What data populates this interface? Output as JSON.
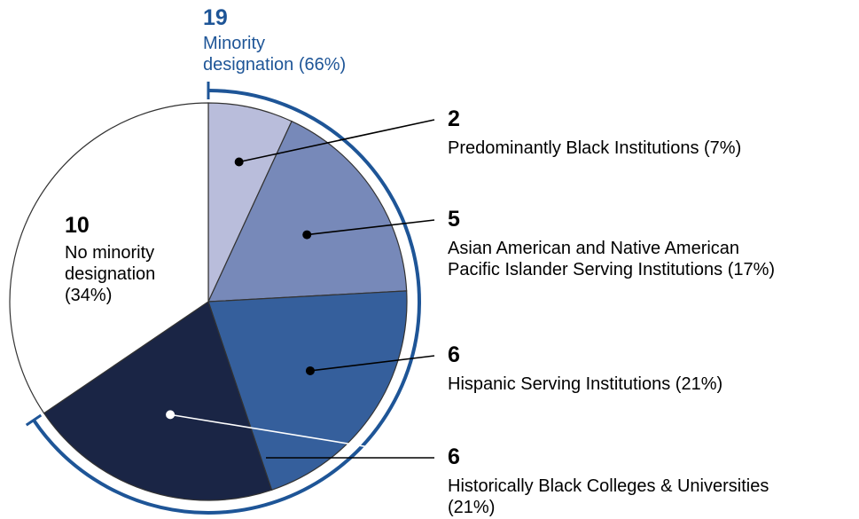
{
  "chart_data": {
    "type": "pie",
    "title": "",
    "slices": [
      {
        "label": "Predominantly Black Institutions (7%)",
        "count": "2",
        "value": 2,
        "percent": 7,
        "color": "#b9bddb"
      },
      {
        "label": "Asian American and Native American Pacific Islander Serving Institutions (17%)",
        "label_lines": [
          "Asian American and Native American",
          "Pacific Islander Serving Institutions (17%)"
        ],
        "count": "5",
        "value": 5,
        "percent": 17,
        "color": "#7789b9"
      },
      {
        "label": "Hispanic Serving Institutions (21%)",
        "count": "6",
        "value": 6,
        "percent": 21,
        "color": "#355f9c"
      },
      {
        "label": "Historically Black Colleges & Universities (21%)",
        "label_lines": [
          "Historically Black Colleges & Universities",
          "(21%)"
        ],
        "count": "6",
        "value": 6,
        "percent": 21,
        "color": "#1a2545"
      },
      {
        "label": "No minority designation (34%)",
        "label_lines": [
          "No minority",
          "designation",
          "(34%)"
        ],
        "count": "10",
        "value": 10,
        "percent": 34,
        "color": "#ffffff"
      }
    ],
    "group": {
      "count": "19",
      "label_lines": [
        "Minority",
        "designation (66%)"
      ],
      "percent": 66,
      "color": "#1e5597"
    }
  }
}
